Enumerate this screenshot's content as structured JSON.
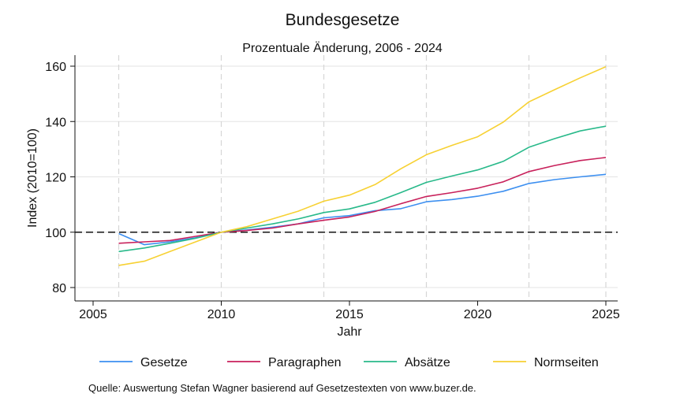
{
  "title": "Bundesgesetze",
  "subtitle": "Prozentuale Änderung, 2006 - 2024",
  "source_note": "Quelle: Auswertung Stefan Wagner basierend auf Gesetzestexten von www.buzer.de.",
  "chart_data": {
    "type": "line",
    "title": "Bundesgesetze",
    "subtitle": "Prozentuale Änderung, 2006 - 2024",
    "xlabel": "Jahr",
    "ylabel": "Index (2010=100)",
    "xlim": [
      2005,
      2025
    ],
    "ylim": [
      80,
      160
    ],
    "xticks": [
      2005,
      2010,
      2015,
      2020,
      2025
    ],
    "yticks": [
      80,
      100,
      120,
      140,
      160
    ],
    "reference_line": 100,
    "vertical_gridlines": [
      2006,
      2010,
      2014,
      2018,
      2022,
      2025
    ],
    "legend_position": "bottom",
    "x": [
      2006,
      2007,
      2008,
      2009,
      2010,
      2011,
      2012,
      2013,
      2014,
      2015,
      2016,
      2017,
      2018,
      2019,
      2020,
      2021,
      2022,
      2023,
      2024,
      2025
    ],
    "series": [
      {
        "name": "Gesetze",
        "color": "#3c8ff0",
        "values": [
          99.5,
          95.5,
          96.5,
          98,
          100,
          100.8,
          101.8,
          103,
          105.2,
          106,
          107.8,
          108.5,
          111,
          111.8,
          113,
          114.8,
          117.6,
          119,
          120,
          120.9
        ]
      },
      {
        "name": "Paragraphen",
        "color": "#c8215b",
        "values": [
          96,
          96.5,
          97,
          98.5,
          100,
          100.6,
          101.5,
          103,
          104.3,
          105.5,
          107.5,
          110.3,
          112.9,
          114.3,
          115.9,
          118.2,
          121.9,
          124.1,
          125.9,
          127
        ]
      },
      {
        "name": "Absätze",
        "color": "#28b98a",
        "values": [
          93,
          94.3,
          96,
          97.8,
          100,
          101.5,
          103,
          104.8,
          107.1,
          108.4,
          110.8,
          114.3,
          118,
          120.3,
          122.5,
          125.6,
          130.7,
          133.8,
          136.6,
          138.3
        ]
      },
      {
        "name": "Normseiten",
        "color": "#f7d133",
        "values": [
          88,
          89.5,
          93,
          96.5,
          100,
          102,
          104.8,
          107.6,
          111.2,
          113.4,
          117.2,
          122.9,
          128,
          131.4,
          134.5,
          139.8,
          147.1,
          151.5,
          155.8,
          159.8
        ]
      }
    ]
  }
}
